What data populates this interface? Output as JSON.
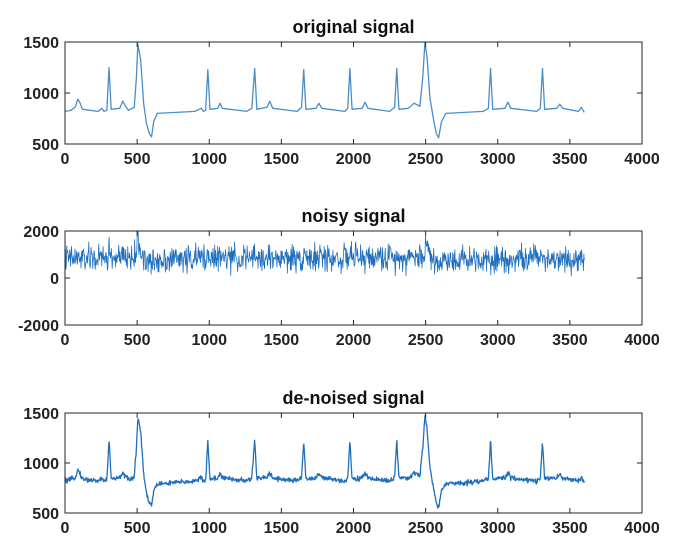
{
  "chart_data": [
    {
      "type": "line",
      "title": "original signal",
      "xlabel": "",
      "ylabel": "",
      "xlim": [
        0,
        4000
      ],
      "ylim": [
        500,
        1500
      ],
      "xticks": [
        0,
        500,
        1000,
        1500,
        2000,
        2500,
        3000,
        3500,
        4000
      ],
      "yticks": [
        500,
        1000,
        1500
      ],
      "xtick_labels": [
        "0",
        "500",
        "1000",
        "1500",
        "2000",
        "2500",
        "3000",
        "3500",
        "4000"
      ],
      "ytick_labels": [
        "500",
        "1000",
        "1500"
      ],
      "grid": false,
      "series": [
        {
          "color": "#4a8ec9",
          "points": [
            [
              0,
              820
            ],
            [
              40,
              830
            ],
            [
              70,
              860
            ],
            [
              90,
              940
            ],
            [
              105,
              900
            ],
            [
              120,
              840
            ],
            [
              230,
              820
            ],
            [
              255,
              850
            ],
            [
              270,
              820
            ],
            [
              290,
              830
            ],
            [
              305,
              1250
            ],
            [
              320,
              840
            ],
            [
              380,
              850
            ],
            [
              400,
              920
            ],
            [
              415,
              880
            ],
            [
              440,
              830
            ],
            [
              480,
              860
            ],
            [
              495,
              1150
            ],
            [
              505,
              1480
            ],
            [
              525,
              1320
            ],
            [
              545,
              900
            ],
            [
              565,
              700
            ],
            [
              585,
              600
            ],
            [
              600,
              570
            ],
            [
              615,
              720
            ],
            [
              640,
              800
            ],
            [
              900,
              820
            ],
            [
              945,
              850
            ],
            [
              960,
              820
            ],
            [
              975,
              830
            ],
            [
              990,
              1230
            ],
            [
              1005,
              840
            ],
            [
              1060,
              850
            ],
            [
              1075,
              900
            ],
            [
              1090,
              850
            ],
            [
              1260,
              820
            ],
            [
              1295,
              850
            ],
            [
              1315,
              1240
            ],
            [
              1330,
              840
            ],
            [
              1400,
              860
            ],
            [
              1420,
              920
            ],
            [
              1440,
              850
            ],
            [
              1610,
              820
            ],
            [
              1640,
              860
            ],
            [
              1655,
              1230
            ],
            [
              1670,
              840
            ],
            [
              1740,
              850
            ],
            [
              1760,
              900
            ],
            [
              1780,
              850
            ],
            [
              1940,
              820
            ],
            [
              1960,
              850
            ],
            [
              1975,
              1240
            ],
            [
              1990,
              840
            ],
            [
              2060,
              850
            ],
            [
              2080,
              910
            ],
            [
              2100,
              850
            ],
            [
              2250,
              820
            ],
            [
              2285,
              860
            ],
            [
              2300,
              1240
            ],
            [
              2315,
              840
            ],
            [
              2380,
              850
            ],
            [
              2420,
              900
            ],
            [
              2460,
              870
            ],
            [
              2480,
              1150
            ],
            [
              2495,
              1490
            ],
            [
              2510,
              1350
            ],
            [
              2530,
              950
            ],
            [
              2560,
              700
            ],
            [
              2575,
              600
            ],
            [
              2590,
              560
            ],
            [
              2610,
              720
            ],
            [
              2640,
              800
            ],
            [
              2900,
              820
            ],
            [
              2935,
              850
            ],
            [
              2950,
              1240
            ],
            [
              2965,
              840
            ],
            [
              3050,
              850
            ],
            [
              3070,
              910
            ],
            [
              3090,
              850
            ],
            [
              3270,
              820
            ],
            [
              3295,
              850
            ],
            [
              3310,
              1240
            ],
            [
              3325,
              840
            ],
            [
              3410,
              850
            ],
            [
              3430,
              890
            ],
            [
              3450,
              850
            ],
            [
              3560,
              820
            ],
            [
              3580,
              860
            ],
            [
              3600,
              810
            ]
          ]
        }
      ]
    },
    {
      "type": "line",
      "title": "noisy signal",
      "xlabel": "",
      "ylabel": "",
      "xlim": [
        0,
        4000
      ],
      "ylim": [
        -2000,
        2000
      ],
      "xticks": [
        0,
        500,
        1000,
        1500,
        2000,
        2500,
        3000,
        3500,
        4000
      ],
      "yticks": [
        -2000,
        0,
        2000
      ],
      "xtick_labels": [
        "0",
        "500",
        "1000",
        "1500",
        "2000",
        "2500",
        "3000",
        "3500",
        "4000"
      ],
      "ytick_labels": [
        "-2000",
        "0",
        "2000"
      ],
      "grid": false,
      "noise_amplitude": 420,
      "series": [
        {
          "color": "#1f6fbf",
          "points": [
            [
              0,
              820
            ],
            [
              300,
              840
            ],
            [
              305,
              1300
            ],
            [
              320,
              850
            ],
            [
              490,
              870
            ],
            [
              500,
              1750
            ],
            [
              520,
              1200
            ],
            [
              560,
              700
            ],
            [
              600,
              600
            ],
            [
              640,
              800
            ],
            [
              990,
              850
            ],
            [
              1000,
              1300
            ],
            [
              1010,
              840
            ],
            [
              1650,
              840
            ],
            [
              1660,
              1350
            ],
            [
              1670,
              840
            ],
            [
              1970,
              840
            ],
            [
              1980,
              1300
            ],
            [
              1990,
              840
            ],
            [
              2490,
              900
            ],
            [
              2500,
              1700
            ],
            [
              2520,
              1100
            ],
            [
              2570,
              650
            ],
            [
              2600,
              600
            ],
            [
              2640,
              800
            ],
            [
              3300,
              840
            ],
            [
              3310,
              1300
            ],
            [
              3320,
              840
            ],
            [
              3600,
              820
            ]
          ]
        }
      ]
    },
    {
      "type": "line",
      "title": "de-noised signal",
      "xlabel": "",
      "ylabel": "",
      "xlim": [
        0,
        4000
      ],
      "ylim": [
        500,
        1500
      ],
      "xticks": [
        0,
        500,
        1000,
        1500,
        2000,
        2500,
        3000,
        3500,
        4000
      ],
      "yticks": [
        500,
        1000,
        1500
      ],
      "xtick_labels": [
        "0",
        "500",
        "1000",
        "1500",
        "2000",
        "2500",
        "3000",
        "3500",
        "4000"
      ],
      "ytick_labels": [
        "500",
        "1000",
        "1500"
      ],
      "grid": false,
      "noise_amplitude": 18,
      "series": [
        {
          "color": "#1f6fbf",
          "points": [
            [
              0,
              820
            ],
            [
              40,
              830
            ],
            [
              70,
              860
            ],
            [
              90,
              930
            ],
            [
              105,
              895
            ],
            [
              120,
              840
            ],
            [
              230,
              820
            ],
            [
              255,
              850
            ],
            [
              270,
              820
            ],
            [
              290,
              830
            ],
            [
              305,
              1240
            ],
            [
              320,
              840
            ],
            [
              380,
              850
            ],
            [
              400,
              910
            ],
            [
              415,
              875
            ],
            [
              440,
              830
            ],
            [
              480,
              860
            ],
            [
              495,
              1150
            ],
            [
              505,
              1470
            ],
            [
              525,
              1310
            ],
            [
              545,
              900
            ],
            [
              565,
              700
            ],
            [
              585,
              600
            ],
            [
              600,
              575
            ],
            [
              615,
              720
            ],
            [
              640,
              790
            ],
            [
              900,
              820
            ],
            [
              945,
              850
            ],
            [
              960,
              820
            ],
            [
              975,
              830
            ],
            [
              990,
              1220
            ],
            [
              1005,
              840
            ],
            [
              1060,
              850
            ],
            [
              1075,
              900
            ],
            [
              1090,
              850
            ],
            [
              1260,
              820
            ],
            [
              1295,
              850
            ],
            [
              1315,
              1230
            ],
            [
              1330,
              840
            ],
            [
              1400,
              860
            ],
            [
              1420,
              910
            ],
            [
              1440,
              850
            ],
            [
              1610,
              820
            ],
            [
              1640,
              860
            ],
            [
              1655,
              1220
            ],
            [
              1670,
              840
            ],
            [
              1740,
              850
            ],
            [
              1760,
              900
            ],
            [
              1780,
              850
            ],
            [
              1940,
              820
            ],
            [
              1960,
              850
            ],
            [
              1975,
              1230
            ],
            [
              1990,
              840
            ],
            [
              2060,
              850
            ],
            [
              2080,
              900
            ],
            [
              2100,
              850
            ],
            [
              2250,
              820
            ],
            [
              2285,
              860
            ],
            [
              2300,
              1230
            ],
            [
              2315,
              840
            ],
            [
              2380,
              850
            ],
            [
              2420,
              900
            ],
            [
              2460,
              870
            ],
            [
              2480,
              1150
            ],
            [
              2495,
              1480
            ],
            [
              2510,
              1340
            ],
            [
              2530,
              950
            ],
            [
              2560,
              700
            ],
            [
              2575,
              600
            ],
            [
              2590,
              560
            ],
            [
              2610,
              720
            ],
            [
              2640,
              790
            ],
            [
              2900,
              820
            ],
            [
              2935,
              850
            ],
            [
              2950,
              1230
            ],
            [
              2965,
              840
            ],
            [
              3050,
              850
            ],
            [
              3070,
              900
            ],
            [
              3090,
              850
            ],
            [
              3270,
              820
            ],
            [
              3295,
              850
            ],
            [
              3310,
              1230
            ],
            [
              3325,
              840
            ],
            [
              3410,
              850
            ],
            [
              3430,
              890
            ],
            [
              3450,
              850
            ],
            [
              3560,
              820
            ],
            [
              3580,
              860
            ],
            [
              3600,
              810
            ]
          ]
        }
      ]
    }
  ]
}
